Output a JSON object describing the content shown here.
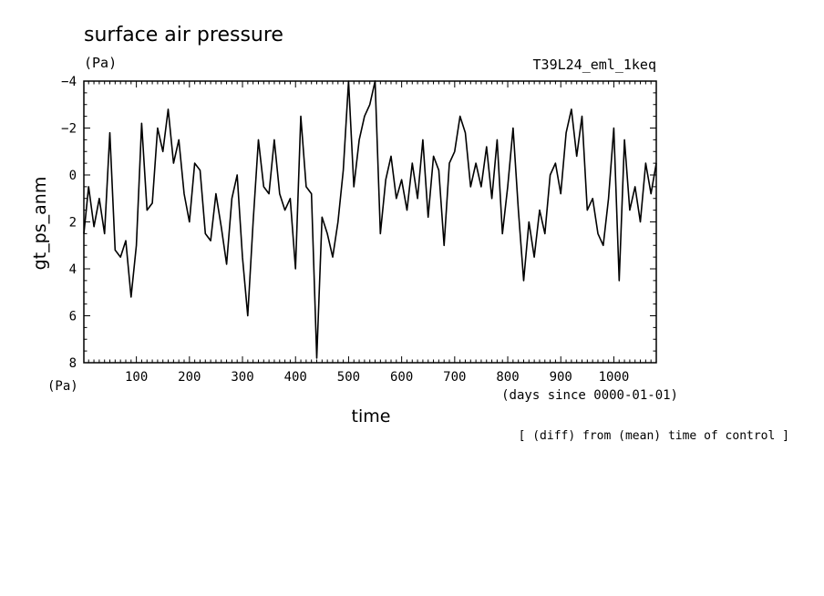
{
  "chart_data": {
    "type": "line",
    "title": "surface air pressure",
    "subtitle": "T39L24_eml_1keq",
    "yunits": "(Pa)",
    "xunits_label": "(Pa)",
    "ylabel": "gt_ps_anm",
    "xlabel": "time",
    "xlabel_note": "(days since 0000-01-01)",
    "footnote": "[ (diff) from (mean) time of control ]",
    "xlim": [
      1,
      1080
    ],
    "ylim": [
      8,
      -4
    ],
    "y_inverted": true,
    "x_ticks": [
      100,
      200,
      300,
      400,
      500,
      600,
      700,
      800,
      900,
      1000
    ],
    "y_ticks": [
      -4,
      -2,
      0,
      2,
      4,
      6,
      8
    ],
    "y_tick_labels": [
      "−4",
      "−2",
      "0",
      "2",
      "4",
      "6",
      "8"
    ],
    "grid": false,
    "series": [
      {
        "name": "",
        "x": [
          1,
          10,
          20,
          30,
          40,
          50,
          60,
          70,
          80,
          90,
          100,
          110,
          120,
          130,
          140,
          150,
          160,
          170,
          180,
          190,
          200,
          210,
          220,
          230,
          240,
          250,
          260,
          270,
          280,
          290,
          300,
          310,
          320,
          330,
          340,
          350,
          360,
          370,
          380,
          390,
          400,
          410,
          420,
          430,
          440,
          450,
          460,
          470,
          480,
          490,
          500,
          510,
          520,
          530,
          540,
          550,
          560,
          570,
          580,
          590,
          600,
          610,
          620,
          630,
          640,
          650,
          660,
          670,
          680,
          690,
          700,
          710,
          720,
          730,
          740,
          750,
          760,
          770,
          780,
          790,
          800,
          810,
          820,
          830,
          840,
          850,
          860,
          870,
          880,
          890,
          900,
          910,
          920,
          930,
          940,
          950,
          960,
          970,
          980,
          990,
          1000,
          1010,
          1020,
          1030,
          1040,
          1050,
          1060,
          1070,
          1080
        ],
        "y": [
          2.5,
          0.5,
          2.2,
          1.0,
          2.5,
          -1.8,
          3.2,
          3.5,
          2.8,
          5.2,
          3.0,
          -2.2,
          1.5,
          1.2,
          -2.0,
          -1.0,
          -2.8,
          -0.5,
          -1.5,
          0.8,
          2.0,
          -0.5,
          -0.2,
          2.5,
          2.8,
          0.8,
          2.2,
          3.8,
          1.0,
          0.0,
          3.5,
          6.0,
          2.0,
          -1.5,
          0.5,
          0.8,
          -1.5,
          0.8,
          1.5,
          1.0,
          4.0,
          -2.5,
          0.5,
          0.8,
          7.8,
          1.8,
          2.5,
          3.5,
          2.0,
          -0.2,
          -4.0,
          0.5,
          -1.5,
          -2.5,
          -3.0,
          -4.0,
          2.5,
          0.2,
          -0.8,
          1.0,
          0.2,
          1.5,
          -0.5,
          1.0,
          -1.5,
          1.8,
          -0.8,
          -0.2,
          3.0,
          -0.5,
          -1.0,
          -2.5,
          -1.8,
          0.5,
          -0.5,
          0.5,
          -1.2,
          1.0,
          -1.5,
          2.5,
          0.5,
          -2.0,
          1.5,
          4.5,
          2.0,
          3.5,
          1.5,
          2.5,
          0.0,
          -0.5,
          0.8,
          -1.8,
          -2.8,
          -0.8,
          -2.5,
          1.5,
          1.0,
          2.5,
          3.0,
          1.0,
          -2.0,
          4.5,
          -1.5,
          1.5,
          0.5,
          2.0,
          -0.5,
          0.8,
          -0.5
        ]
      }
    ]
  }
}
